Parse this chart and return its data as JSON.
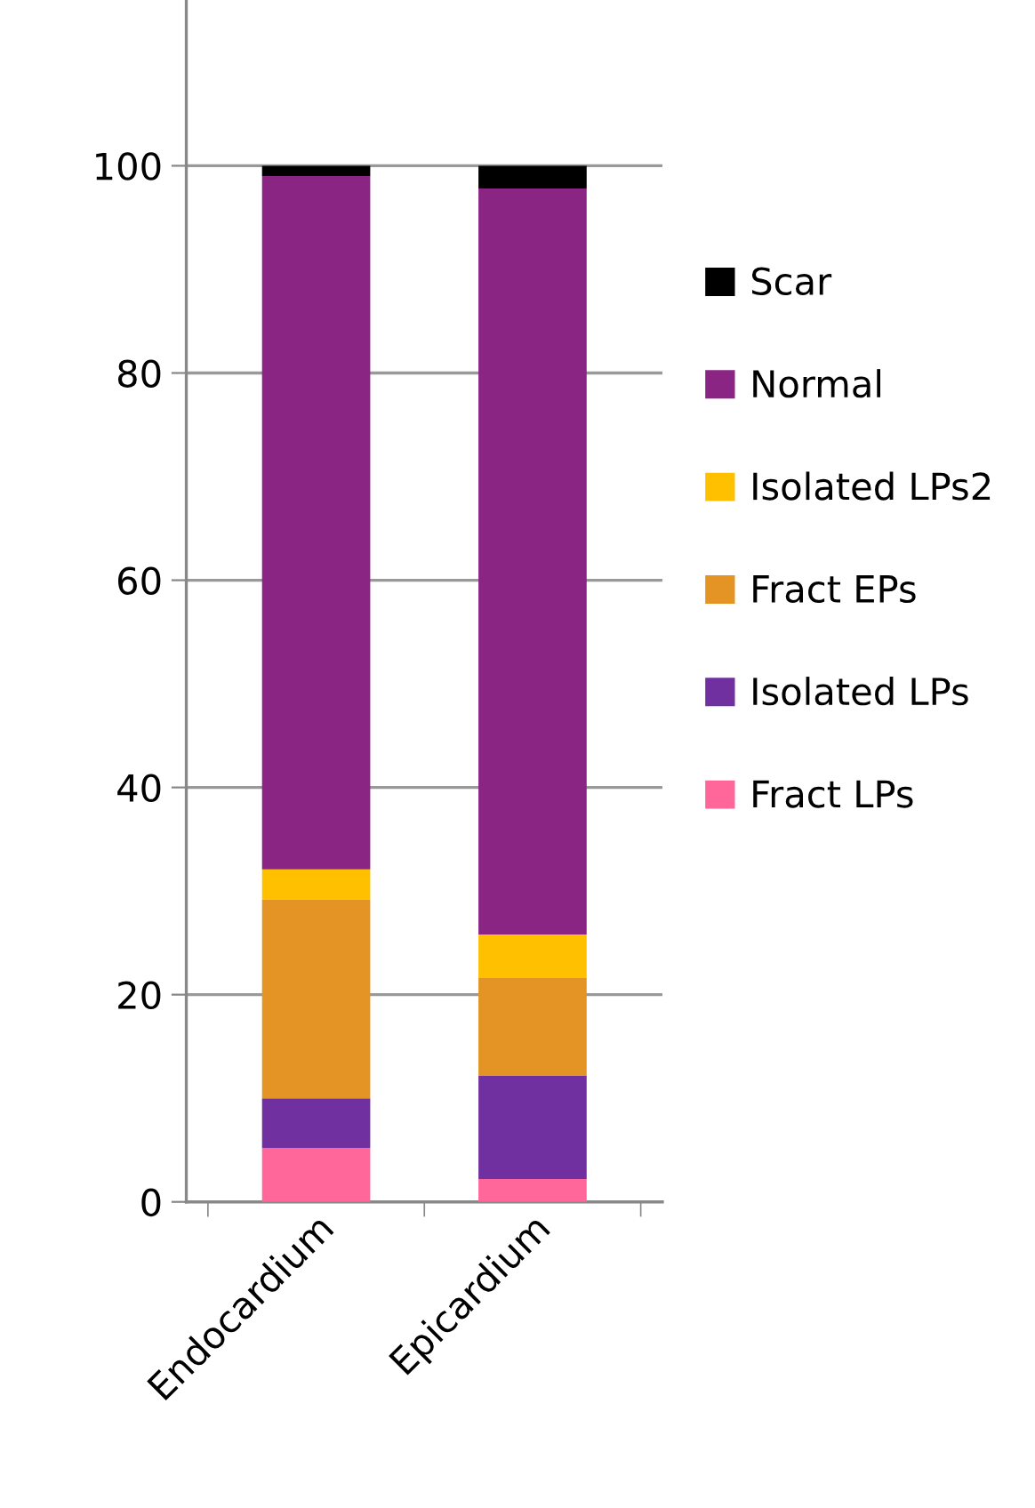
{
  "chart_data": {
    "type": "bar",
    "stacked": true,
    "categories": [
      "Endocardium",
      "Epicardium"
    ],
    "series": [
      {
        "name": "Fract LPs",
        "color": "#ff6699",
        "values": [
          5.2,
          2.2
        ]
      },
      {
        "name": "Isolated LPs",
        "color": "#7030a0",
        "values": [
          4.8,
          10.0
        ]
      },
      {
        "name": "Fract EPs",
        "color": "#e39424",
        "values": [
          19.2,
          9.4
        ]
      },
      {
        "name": "Isolated LPs2",
        "color": "#ffc000",
        "values": [
          2.9,
          4.2
        ]
      },
      {
        "name": "Normal",
        "color": "#8b2583",
        "values": [
          66.9,
          72.0
        ]
      },
      {
        "name": "Scar",
        "color": "#000000",
        "values": [
          1.0,
          2.2
        ]
      }
    ],
    "ylim": [
      0,
      116
    ],
    "yticks": [
      0,
      20,
      40,
      60,
      80,
      100
    ],
    "grid": "y",
    "legend": "right"
  }
}
